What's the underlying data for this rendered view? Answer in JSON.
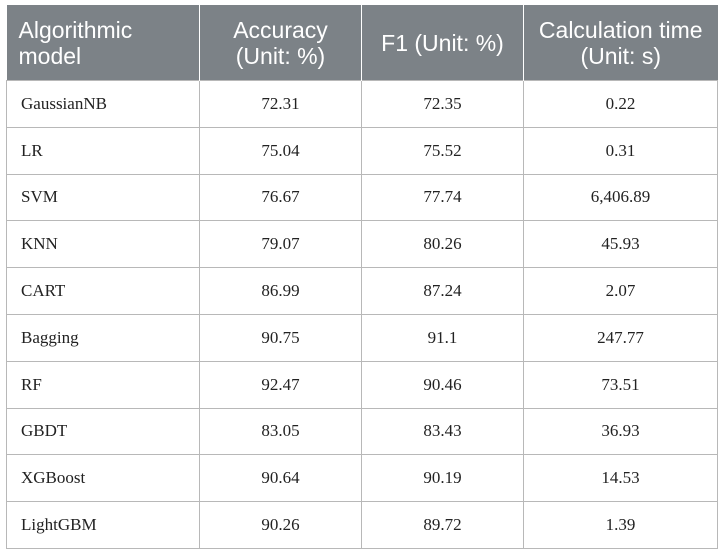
{
  "table": {
    "headers": [
      "Algorithmic model",
      "Accuracy (Unit: %)",
      "F1 (Unit: %)",
      "Calculation time (Unit: s)"
    ],
    "rows": [
      [
        "GaussianNB",
        "72.31",
        "72.35",
        "0.22"
      ],
      [
        "LR",
        "75.04",
        "75.52",
        "0.31"
      ],
      [
        "SVM",
        "76.67",
        "77.74",
        "6,406.89"
      ],
      [
        "KNN",
        "79.07",
        "80.26",
        "45.93"
      ],
      [
        "CART",
        "86.99",
        "87.24",
        "2.07"
      ],
      [
        "Bagging",
        "90.75",
        "91.1",
        "247.77"
      ],
      [
        "RF",
        "92.47",
        "90.46",
        "73.51"
      ],
      [
        "GBDT",
        "83.05",
        "83.43",
        "36.93"
      ],
      [
        "XGBoost",
        "90.64",
        "90.19",
        "14.53"
      ],
      [
        "LightGBM",
        "90.26",
        "89.72",
        "1.39"
      ]
    ]
  },
  "colors": {
    "header_bg": "#7c8287",
    "header_text": "#ffffff",
    "grid_line": "#b8b8b8",
    "body_text": "#222222"
  }
}
